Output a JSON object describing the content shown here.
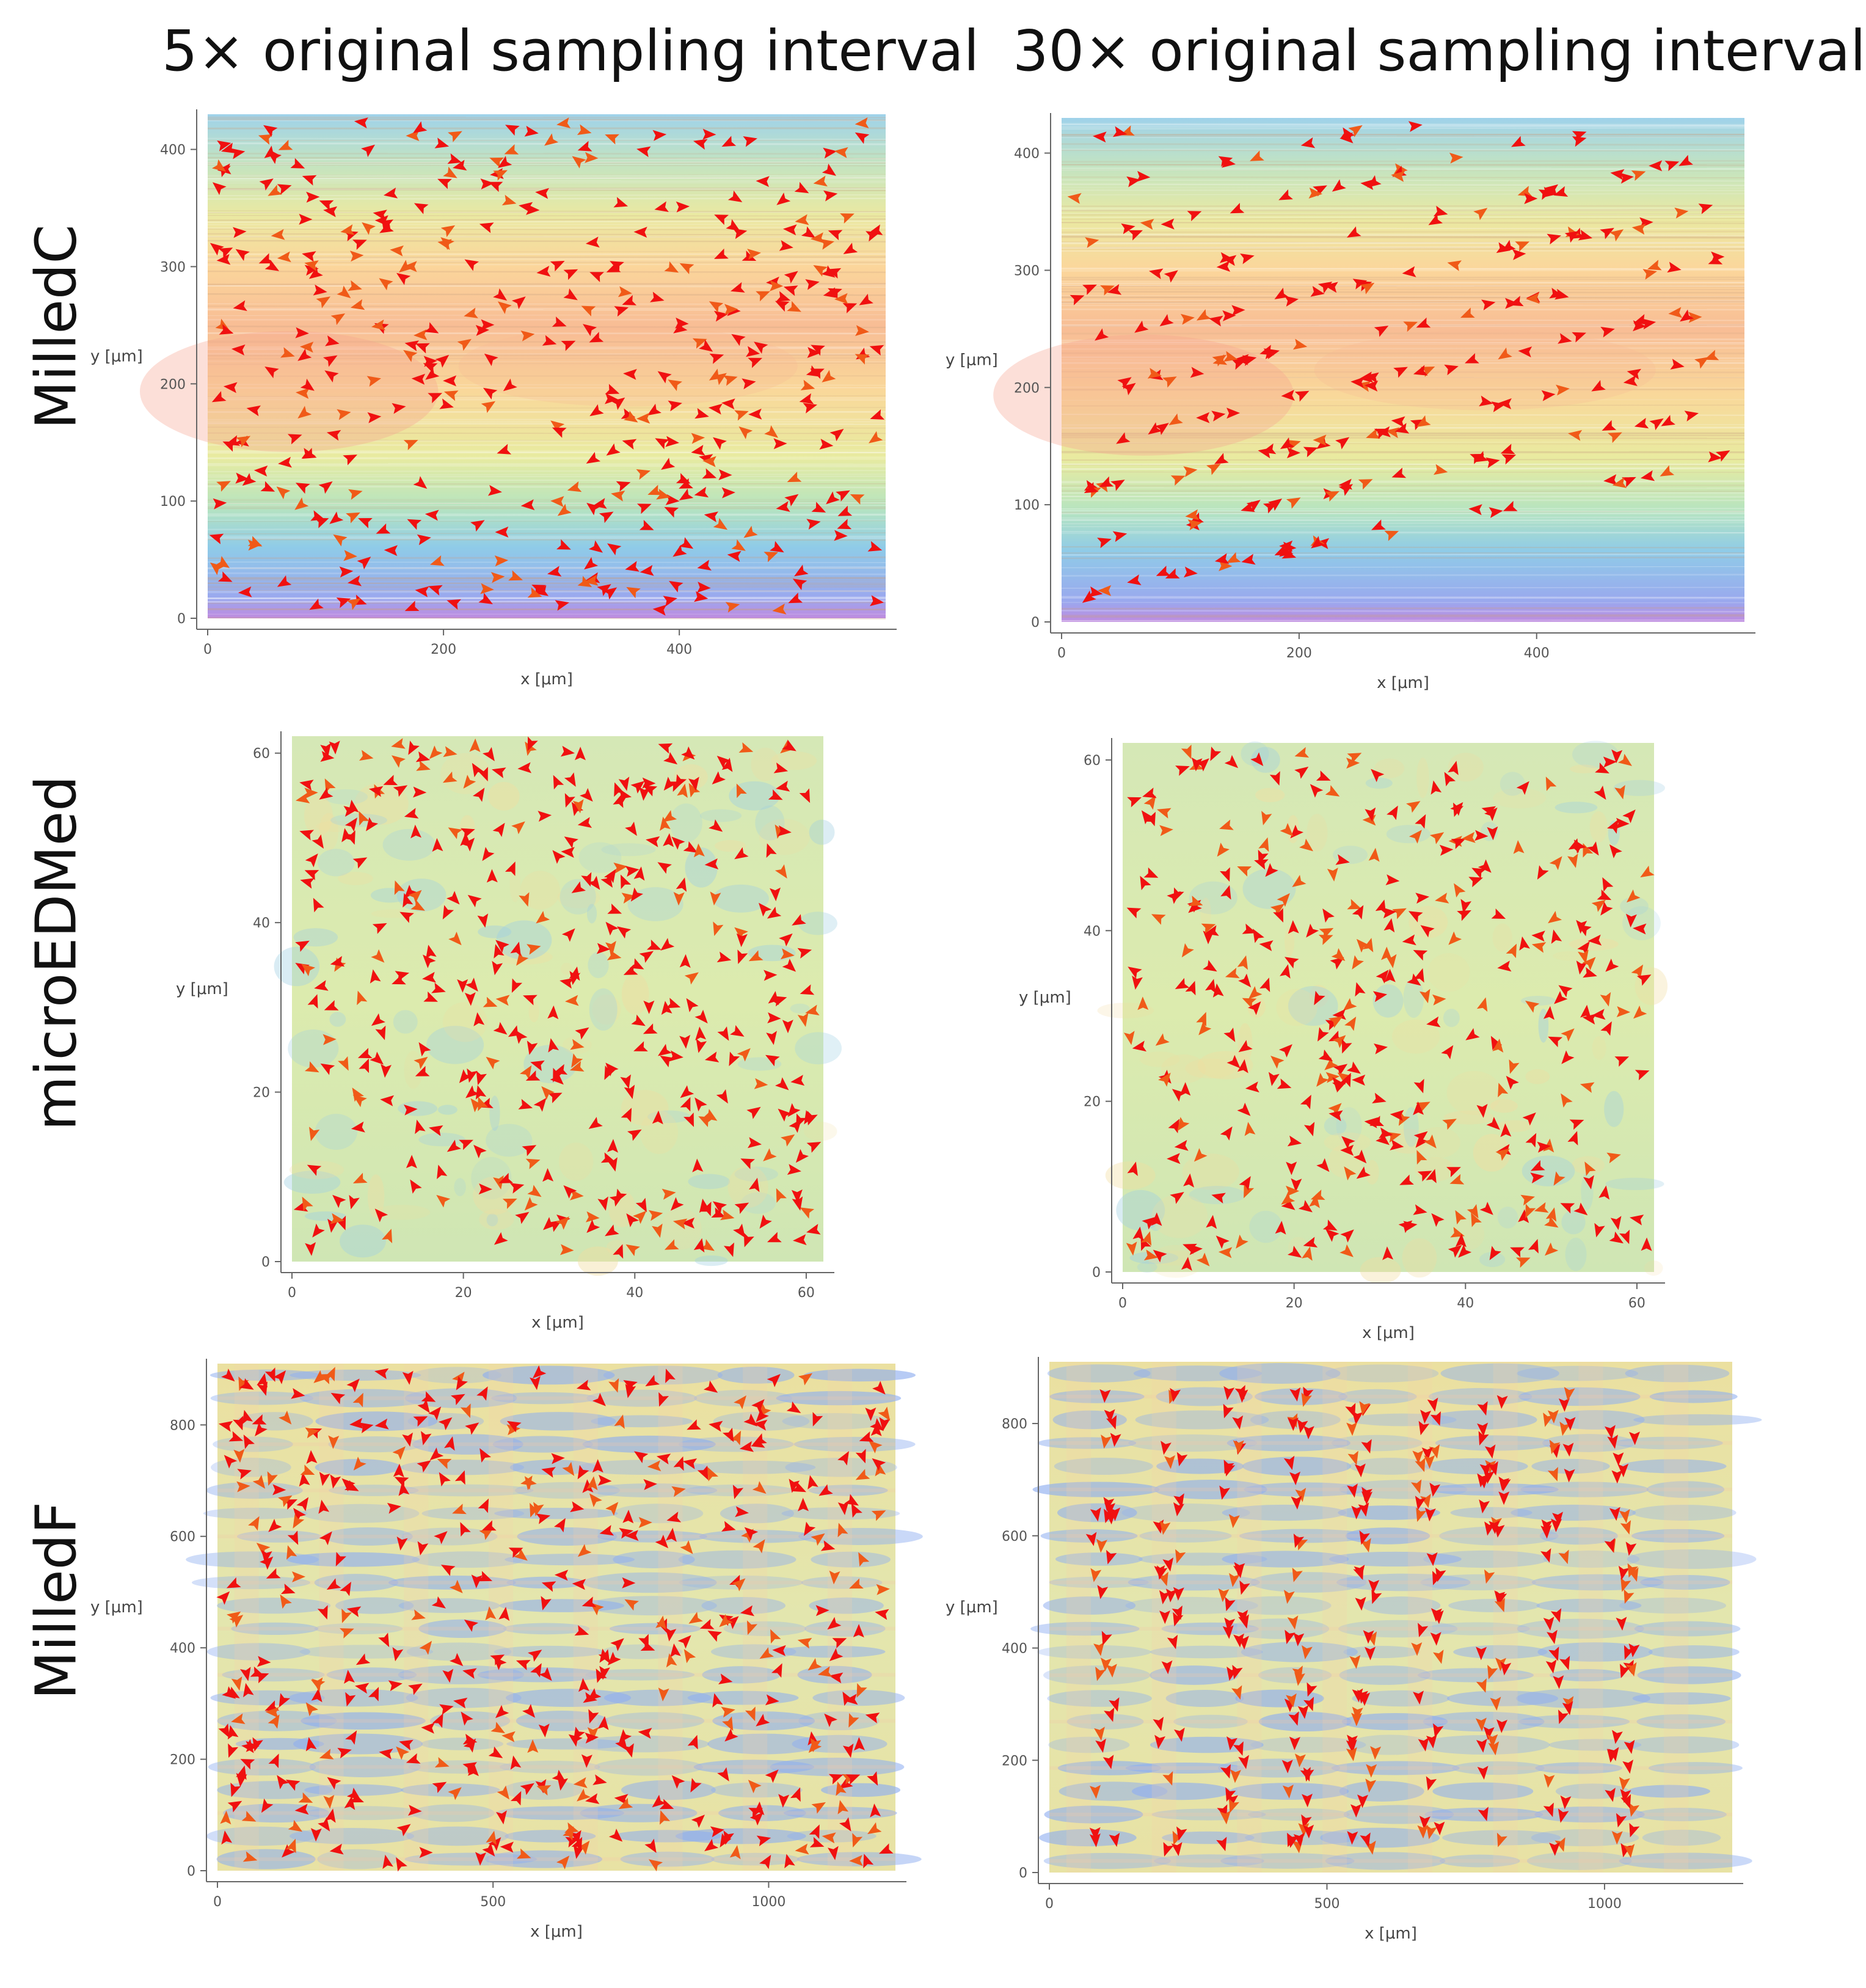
{
  "column_titles": [
    "5× original sampling interval",
    "30× original sampling interval"
  ],
  "row_titles": [
    "MilledC",
    "microEDMed",
    "MilledF"
  ],
  "colors": {
    "arrow": "#f01010",
    "arrow_alt": "#f05a18",
    "axis": "#666666"
  },
  "chart_data": [
    {
      "id": "milledc-5x",
      "type": "vector-field",
      "surface": "MilledC",
      "sampling": "5×",
      "colormap": "milledc",
      "pattern": "dense",
      "arrow_count": 420,
      "xlabel": "x [μm]",
      "ylabel": "y [μm]",
      "xlim": [
        0,
        575
      ],
      "ylim": [
        0,
        430
      ],
      "xticks": [
        "0",
        "200",
        "400"
      ],
      "xtick_values": [
        0,
        200,
        400
      ],
      "yticks": [
        "0",
        "100",
        "200",
        "300",
        "400"
      ],
      "ytick_values": [
        0,
        100,
        200,
        300,
        400
      ]
    },
    {
      "id": "milledc-30x",
      "type": "vector-field",
      "surface": "MilledC",
      "sampling": "30×",
      "colormap": "milledc",
      "pattern": "diagonal-bands",
      "arrow_count": 300,
      "xlabel": "x [μm]",
      "ylabel": "y [μm]",
      "xlim": [
        0,
        575
      ],
      "ylim": [
        0,
        430
      ],
      "xticks": [
        "0",
        "200",
        "400"
      ],
      "xtick_values": [
        0,
        200,
        400
      ],
      "yticks": [
        "0",
        "100",
        "200",
        "300",
        "400"
      ],
      "ytick_values": [
        0,
        100,
        200,
        300,
        400
      ]
    },
    {
      "id": "microedm-5x",
      "type": "vector-field",
      "surface": "microEDMed",
      "sampling": "5×",
      "colormap": "microedm",
      "pattern": "random",
      "arrow_count": 400,
      "xlabel": "x [μm]",
      "ylabel": "y [μm]",
      "xlim": [
        0,
        62
      ],
      "ylim": [
        0,
        62
      ],
      "xticks": [
        "0",
        "20",
        "40",
        "60"
      ],
      "xtick_values": [
        0,
        20,
        40,
        60
      ],
      "yticks": [
        "0",
        "20",
        "40",
        "60"
      ],
      "ytick_values": [
        0,
        20,
        40,
        60
      ]
    },
    {
      "id": "microedm-30x",
      "type": "vector-field",
      "surface": "microEDMed",
      "sampling": "30×",
      "colormap": "microedm",
      "pattern": "random",
      "arrow_count": 380,
      "xlabel": "x [μm]",
      "ylabel": "y [μm]",
      "xlim": [
        0,
        62
      ],
      "ylim": [
        0,
        62
      ],
      "xticks": [
        "0",
        "20",
        "40",
        "60"
      ],
      "xtick_values": [
        0,
        20,
        40,
        60
      ],
      "yticks": [
        "0",
        "20",
        "40",
        "60"
      ],
      "ytick_values": [
        0,
        20,
        40,
        60
      ]
    },
    {
      "id": "milledf-5x",
      "type": "vector-field",
      "surface": "MilledF",
      "sampling": "5×",
      "colormap": "milledf",
      "pattern": "dense",
      "arrow_count": 480,
      "xlabel": "x [μm]",
      "ylabel": "y [μm]",
      "xlim": [
        0,
        1230
      ],
      "ylim": [
        0,
        910
      ],
      "xticks": [
        "0",
        "500",
        "1000"
      ],
      "xtick_values": [
        0,
        500,
        1000
      ],
      "yticks": [
        "0",
        "200",
        "400",
        "600",
        "800"
      ],
      "ytick_values": [
        0,
        200,
        400,
        600,
        800
      ]
    },
    {
      "id": "milledf-30x",
      "type": "vector-field",
      "surface": "MilledF",
      "sampling": "30×",
      "colormap": "milledf",
      "pattern": "vertical-columns",
      "arrow_count": 320,
      "xlabel": "x [μm]",
      "ylabel": "y [μm]",
      "xlim": [
        0,
        1230
      ],
      "ylim": [
        0,
        910
      ],
      "xticks": [
        "0",
        "500",
        "1000"
      ],
      "xtick_values": [
        0,
        500,
        1000
      ],
      "yticks": [
        "0",
        "200",
        "400",
        "600",
        "800"
      ],
      "ytick_values": [
        0,
        200,
        400,
        600,
        800
      ]
    }
  ]
}
